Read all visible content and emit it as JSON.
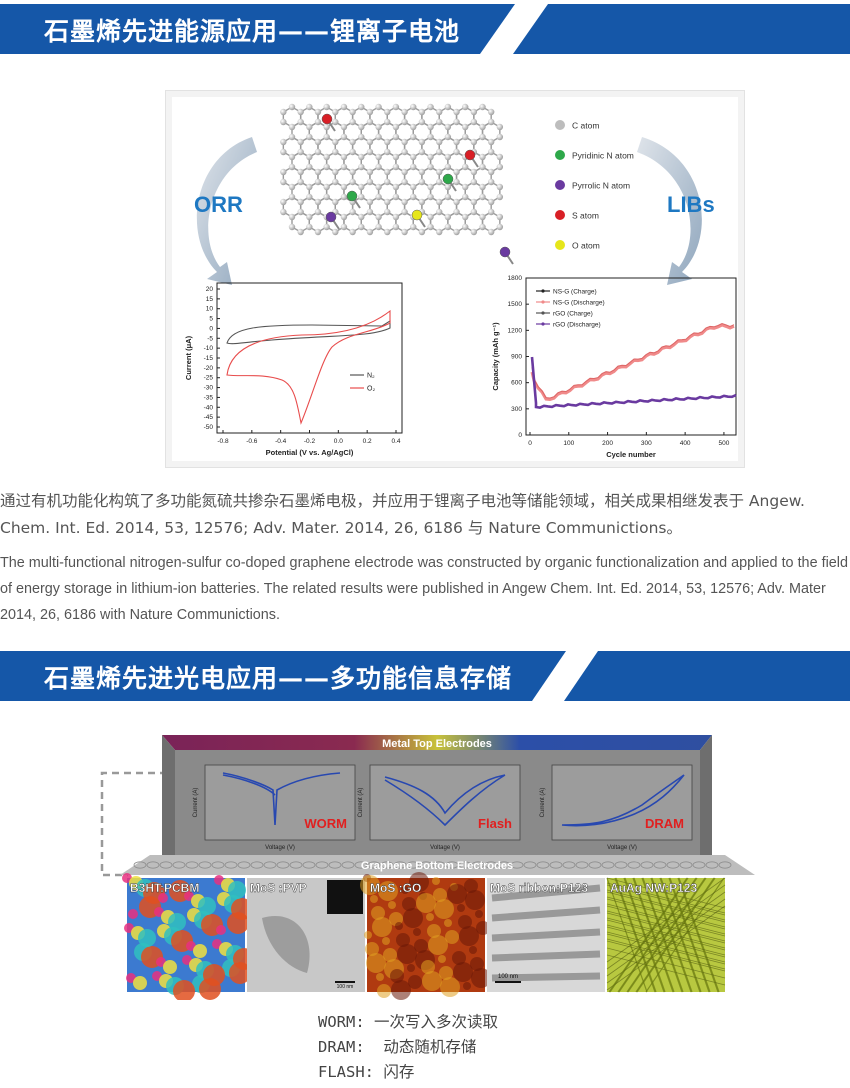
{
  "section1": {
    "title": "石墨烯先进能源应用——锂离子电池",
    "left_label": "ORR",
    "right_label": "LIBs",
    "atom_legend": [
      "C atom",
      "Pyridinic N atom",
      "Pyrrolic N atom",
      "S atom",
      "O atom"
    ],
    "atom_colors": [
      "#bdbdbd",
      "#2ea84a",
      "#6a3aa0",
      "#d81f26",
      "#e6e61a"
    ],
    "cv_chart": {
      "type": "line",
      "xlabel": "Potential (V vs. Ag/AgCl)",
      "ylabel": "Current (μA)",
      "x_ticks": [
        "-0.8",
        "-0.6",
        "-0.4",
        "-0.2",
        "0.0",
        "0.2",
        "0.4"
      ],
      "y_ticks": [
        "20",
        "15",
        "10",
        "5",
        "0",
        "-5",
        "-10",
        "-15",
        "-20",
        "-25",
        "-30",
        "-35",
        "-40",
        "-45",
        "-50"
      ],
      "legend": [
        "N₂",
        "O₂"
      ]
    },
    "cap_chart": {
      "type": "line",
      "xlabel": "Cycle number",
      "ylabel": "Capacity (mAh g⁻¹)",
      "x_ticks": [
        "0",
        "100",
        "200",
        "300",
        "400",
        "500"
      ],
      "y_ticks": [
        "1800",
        "1500",
        "1200",
        "900",
        "600",
        "300",
        "0"
      ],
      "legend": [
        "NS-G (Charge)",
        "NS-G (Discharge)",
        "rGO (Charge)",
        "rGO (Discharge)"
      ]
    },
    "paragraph_cn": "通过有机功能化构筑了多功能氮硫共掺杂石墨烯电极，并应用于锂离子电池等储能领域，相关成果相继发表于 Angew. Chem. Int. Ed. 2014, 53, 12576; Adv. Mater. 2014, 26, 6186 与 Nature Communictions。",
    "paragraph_en": "The multi-functional nitrogen-sulfur co-doped graphene electrode was constructed by organic functionalization and applied to the field of energy storage in lithium-ion batteries. The related results were published in Angew Chem. Int. Ed. 2014, 53, 12576; Adv. Mater 2014, 26, 6186 with Nature Communictions."
  },
  "section2": {
    "title": "石墨烯先进光电应用——多功能信息存储",
    "top_label": "Metal Top Electrodes",
    "bottom_label": "Graphene Bottom Electrodes",
    "panels": [
      {
        "name": "WORM",
        "xlabel": "Voltage (V)",
        "ylabel": "Current (A)"
      },
      {
        "name": "Flash",
        "xlabel": "Voltage (V)",
        "ylabel": "Current (A)"
      },
      {
        "name": "DRAM",
        "xlabel": "Voltage (V)",
        "ylabel": "Current (A)"
      }
    ],
    "materials": [
      "B3HT:PCBM",
      "MoS :PVP",
      "MoS :GO",
      "MoS ribbon:P123",
      "AuAg NW:P123"
    ],
    "scale_labels": [
      "100 nm",
      "100 nm"
    ],
    "legend": [
      {
        "key": "WORM:",
        "value": "一次写入多次读取"
      },
      {
        "key": "DRAM:",
        "value": "动态随机存储"
      },
      {
        "key": "FLASH:",
        "value": "闪存"
      }
    ]
  }
}
